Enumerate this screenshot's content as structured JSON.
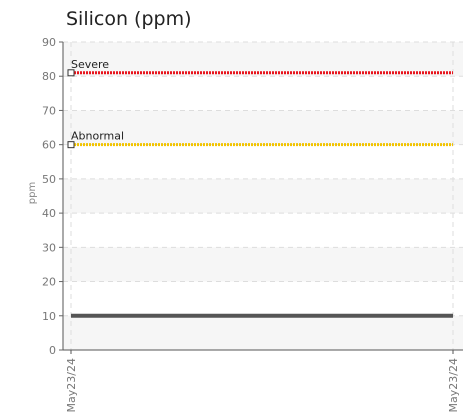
{
  "chart_data": {
    "type": "line",
    "title": "Silicon (ppm)",
    "ylabel": "ppm",
    "xlabel": "",
    "ylim": [
      0,
      90
    ],
    "y_ticks": [
      0,
      10,
      20,
      30,
      40,
      50,
      60,
      70,
      80,
      90
    ],
    "x_ticks": [
      "May23/24",
      "May23/24"
    ],
    "grid": true,
    "thresholds": [
      {
        "label": "Severe",
        "value": 81,
        "color": "#e8141c"
      },
      {
        "label": "Abnormal",
        "value": 60,
        "color": "#f2c400"
      }
    ],
    "series": [
      {
        "x": [
          "May23/24",
          "May23/24"
        ],
        "values": [
          10,
          10
        ],
        "color": "#555555"
      }
    ]
  }
}
